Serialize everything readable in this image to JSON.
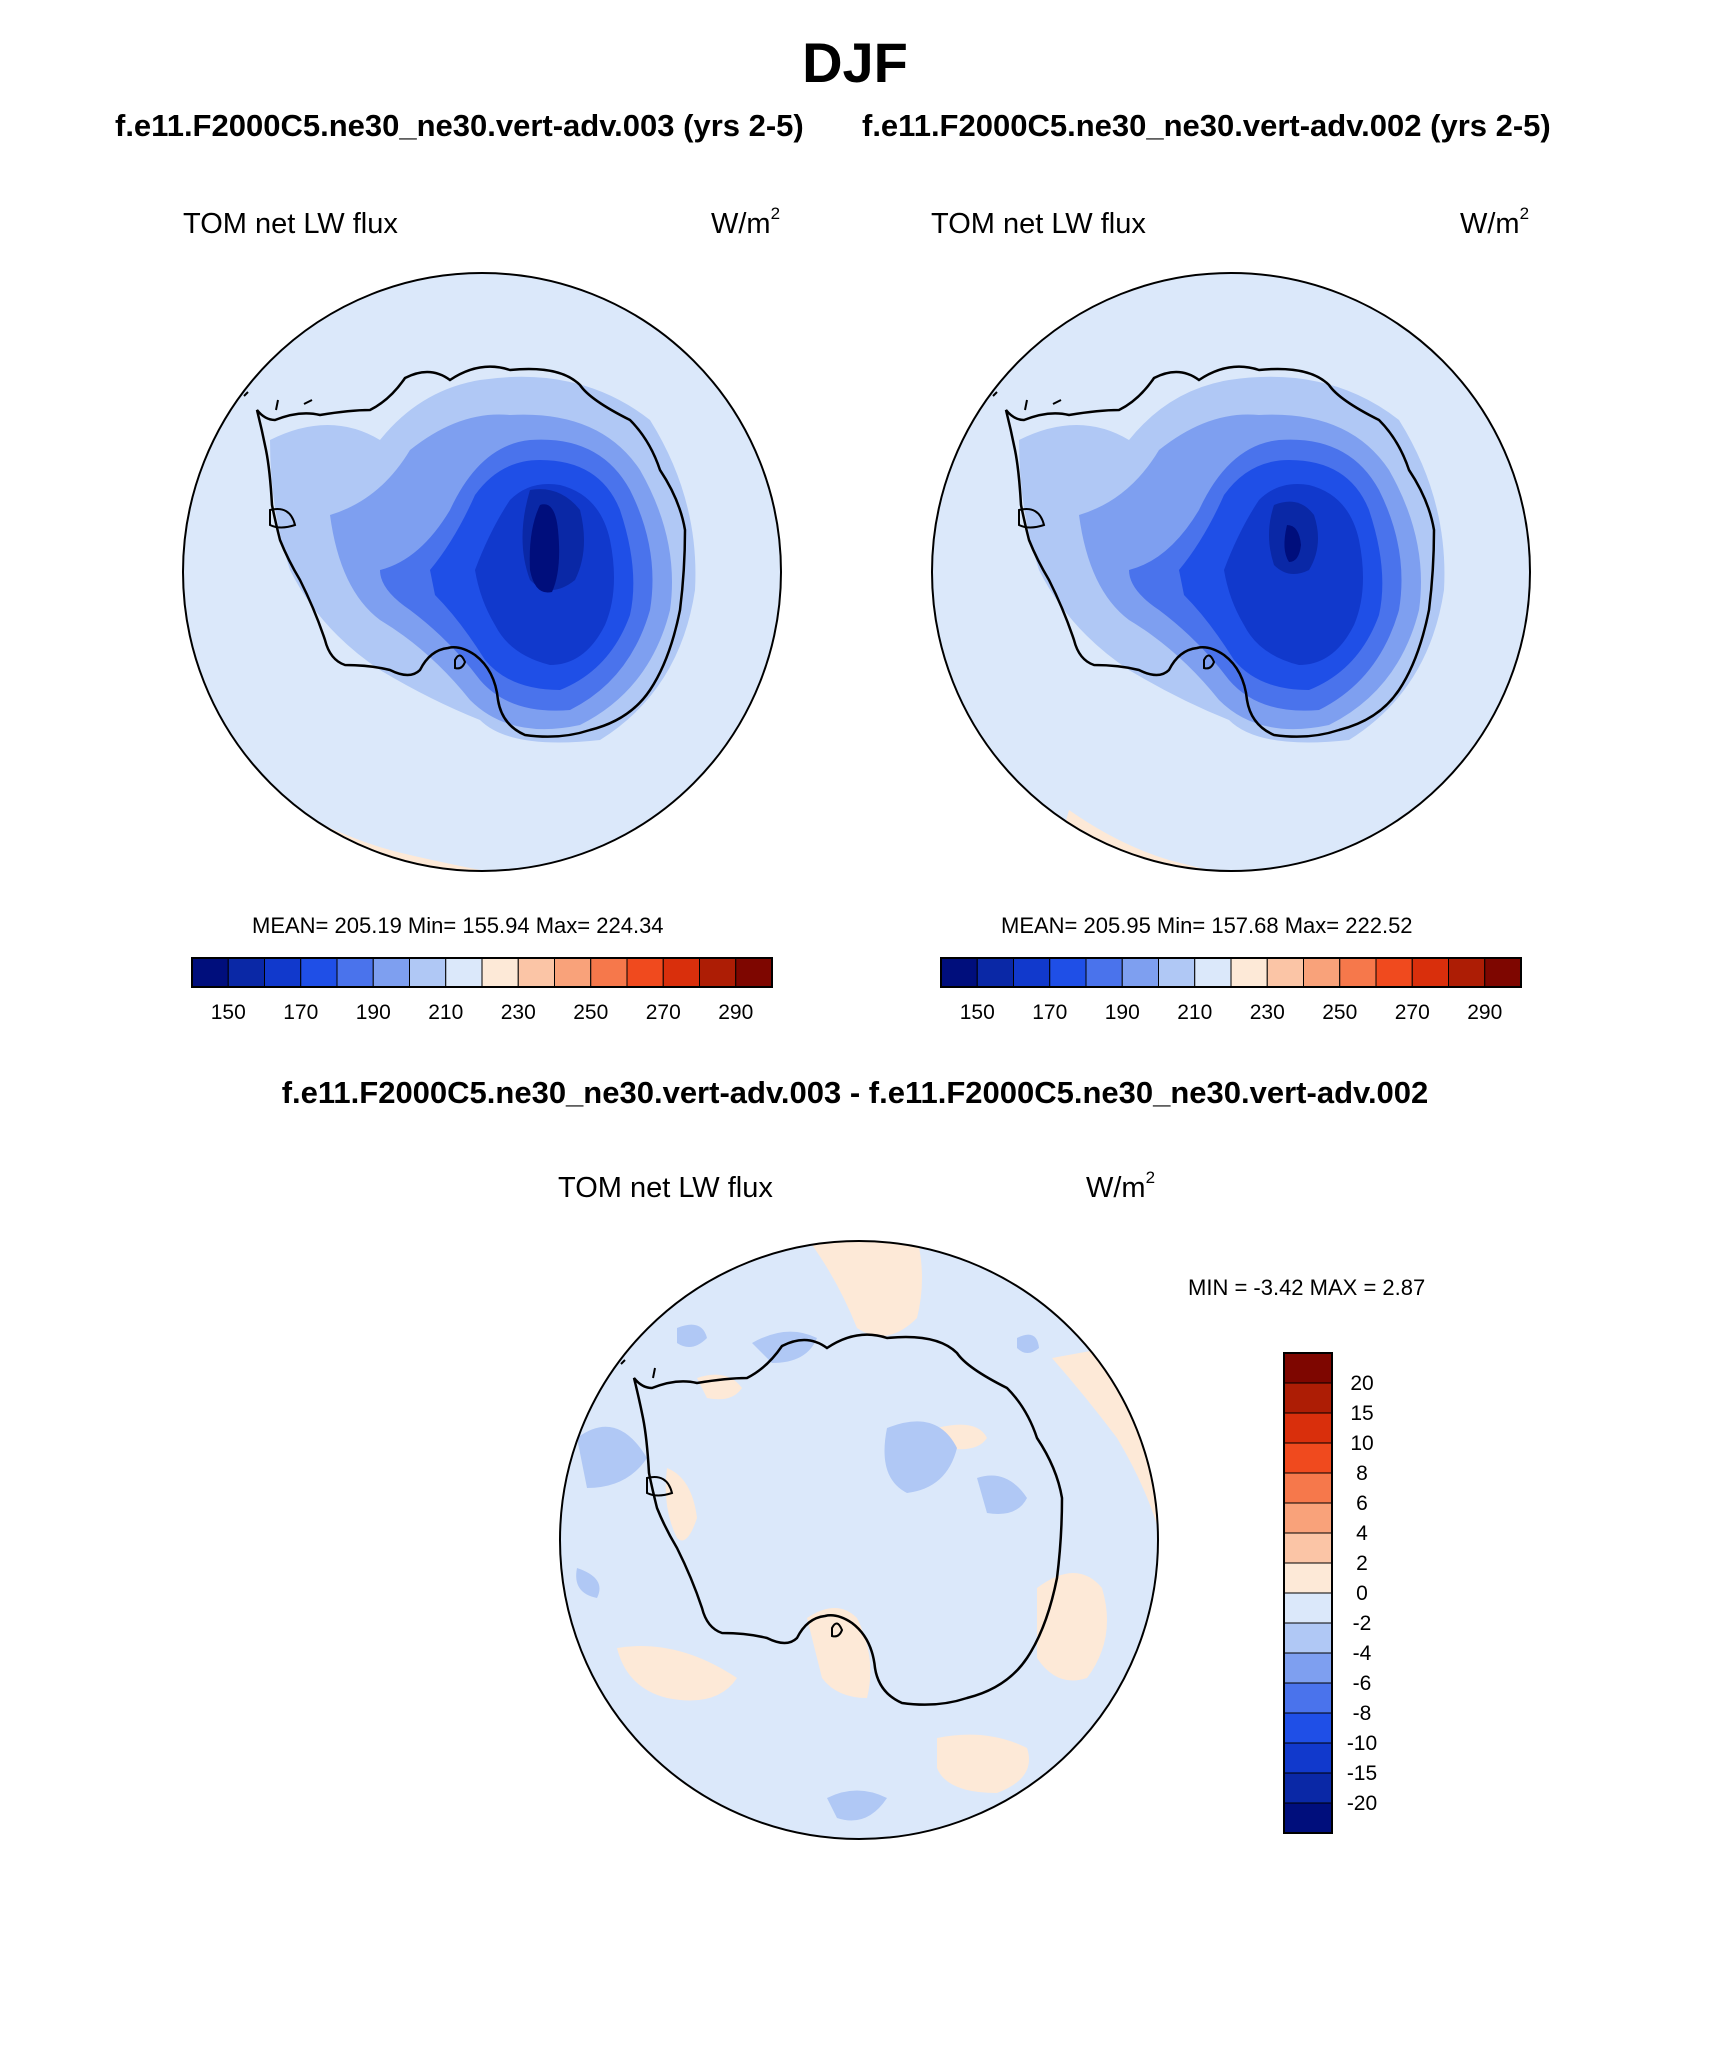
{
  "header": {
    "title": "DJF",
    "case_left": "f.e11.F2000C5.ne30_ne30.vert-adv.003 (yrs 2-5)",
    "case_right": "f.e11.F2000C5.ne30_ne30.vert-adv.002 (yrs 2-5)",
    "diff_title": "f.e11.F2000C5.ne30_ne30.vert-adv.003 - f.e11.F2000C5.ne30_ne30.vert-adv.002"
  },
  "panels": {
    "left": {
      "variable": "TOM net LW flux",
      "units_base": "W/m",
      "units_exp": "2",
      "stats": "MEAN= 205.19  Min= 155.94  Max= 224.34"
    },
    "right": {
      "variable": "TOM net LW flux",
      "units_base": "W/m",
      "units_exp": "2",
      "stats": "MEAN= 205.95  Min= 157.68  Max= 222.52"
    },
    "diff": {
      "variable": "TOM net LW flux",
      "units_base": "W/m",
      "units_exp": "2",
      "stats": "MIN =  -3.42 MAX =   2.87"
    }
  },
  "colorbars": {
    "field": {
      "colors": [
        "#000e7c",
        "#0a28a6",
        "#1139cc",
        "#1f4fe7",
        "#4a73ec",
        "#7e9ff0",
        "#b0c8f5",
        "#dbe8fa",
        "#fde9d7",
        "#fbc5a6",
        "#f9a27a",
        "#f6784b",
        "#f04a1e",
        "#d92f0c",
        "#ad1d05",
        "#7e0600"
      ],
      "labels": [
        "150",
        "170",
        "190",
        "210",
        "230",
        "250",
        "270",
        "290"
      ]
    },
    "diff": {
      "colors": [
        "#000e7c",
        "#0a28a6",
        "#1139cc",
        "#1f4fe7",
        "#4a73ec",
        "#7e9ff0",
        "#b0c8f5",
        "#dbe8fa",
        "#fde9d7",
        "#fbc5a6",
        "#f9a27a",
        "#f6784b",
        "#f04a1e",
        "#d92f0c",
        "#ad1d05",
        "#7e0600"
      ],
      "labels": [
        "20",
        "15",
        "10",
        "8",
        "6",
        "4",
        "2",
        "0",
        "-2",
        "-4",
        "-6",
        "-8",
        "-10",
        "-15",
        "-20"
      ]
    }
  },
  "chart_data": {
    "type": "heatmap",
    "projection": "south-polar-stereographic",
    "season": "DJF",
    "panels": [
      {
        "name": "f.e11.F2000C5.ne30_ne30.vert-adv.003 (yrs 2-5)",
        "mean": 205.19,
        "min": 155.94,
        "max": 224.34,
        "levels": [
          150,
          160,
          170,
          180,
          190,
          200,
          210,
          220,
          230,
          240,
          250,
          260,
          270,
          280,
          290
        ]
      },
      {
        "name": "f.e11.F2000C5.ne30_ne30.vert-adv.002 (yrs 2-5)",
        "mean": 205.95,
        "min": 157.68,
        "max": 222.52,
        "levels": [
          150,
          160,
          170,
          180,
          190,
          200,
          210,
          220,
          230,
          240,
          250,
          260,
          270,
          280,
          290
        ]
      },
      {
        "name": "f.e11.F2000C5.ne30_ne30.vert-adv.003 - f.e11.F2000C5.ne30_ne30.vert-adv.002",
        "min": -3.42,
        "max": 2.87,
        "levels": [
          -20,
          -15,
          -10,
          -8,
          -6,
          -4,
          -2,
          0,
          2,
          4,
          6,
          8,
          10,
          15,
          20
        ]
      }
    ]
  }
}
